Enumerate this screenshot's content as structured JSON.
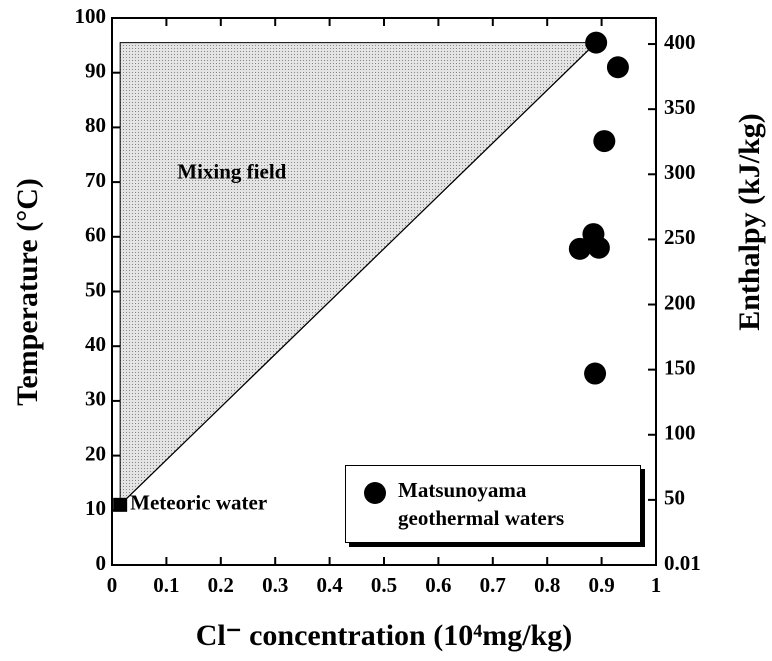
{
  "chart_data": {
    "type": "scatter",
    "xlabel": "Cl⁻ concentration (10⁴mg/kg)",
    "ylabel": "Temperature (°C)",
    "y2label": "Enthalpy (kJ/kg)",
    "xlim": [
      0,
      1
    ],
    "xticks": [
      0,
      0.1,
      0.2,
      0.3,
      0.4,
      0.5,
      0.6,
      0.7,
      0.8,
      0.9,
      1
    ],
    "ylim": [
      0,
      100
    ],
    "yticks": [
      0,
      10,
      20,
      30,
      40,
      50,
      60,
      70,
      80,
      90,
      100
    ],
    "y2lim": [
      0,
      420
    ],
    "y2ticks": [
      0.01,
      50,
      100,
      150,
      200,
      250,
      300,
      350,
      400
    ],
    "annotations": [
      "Mixing field"
    ],
    "meteoric": {
      "name": "Meteoric water",
      "color": "#000000",
      "x": [
        0.015
      ],
      "values": [
        11
      ]
    },
    "series": [
      {
        "name": "Matsunoyama geothermal waters",
        "color": "#000000",
        "x": [
          0.89,
          0.93,
          0.905,
          0.86,
          0.885,
          0.895,
          0.888
        ],
        "values": [
          95.5,
          91,
          77.5,
          57.8,
          60.5,
          58,
          35
        ]
      }
    ],
    "legend": "lower right"
  }
}
